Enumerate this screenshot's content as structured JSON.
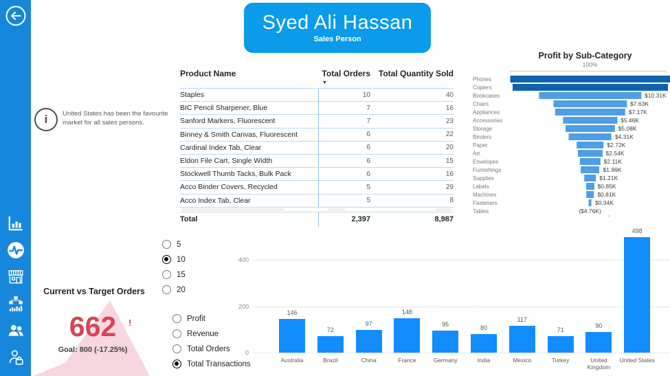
{
  "header": {
    "title": "Syed Ali Hassan",
    "subtitle": "Sales Person"
  },
  "sidebar": {
    "back_icon": "back-arrow-icon",
    "icons": [
      "bar-chart-icon",
      "activity-icon",
      "store-icon",
      "hierarchy-chart-icon",
      "people-icon",
      "sales-agent-icon"
    ]
  },
  "info_note": {
    "icon": "info-icon",
    "text": "United States has been the favourite market for all sales persons."
  },
  "table": {
    "columns": [
      "Product Name",
      "Total Orders",
      "Total Quantity Sold"
    ],
    "sort_icon": "sort-descending-icon",
    "rows": [
      [
        "Staples",
        "10",
        "40"
      ],
      [
        "BIC Pencil Sharpener, Blue",
        "7",
        "16"
      ],
      [
        "Sanford Markers, Fluorescent",
        "7",
        "23"
      ],
      [
        "Binney & Smith Canvas, Fluorescent",
        "6",
        "22"
      ],
      [
        "Cardinal Index Tab, Clear",
        "6",
        "20"
      ],
      [
        "Eldon File Cart, Single Width",
        "6",
        "15"
      ],
      [
        "Stockwell Thumb Tacks, Bulk Pack",
        "6",
        "16"
      ],
      [
        "Acco Binder Covers, Recycled",
        "5",
        "29"
      ],
      [
        "Acco Index Tab, Clear",
        "5",
        "8"
      ]
    ],
    "total": [
      "Total",
      "2,397",
      "8,987"
    ]
  },
  "selectors": {
    "top_n": {
      "options": [
        "5",
        "10",
        "15",
        "20"
      ],
      "selected": "10"
    },
    "measure": {
      "options": [
        "Profit",
        "Revenue",
        "Total Orders",
        "Total Transactions"
      ],
      "selected": "Total Transactions"
    }
  },
  "kpi": {
    "title": "Current vs Target Orders",
    "value": "662",
    "alert": "!",
    "goal": "Goal: 800 (-17.25%)",
    "value_color": "#D64554",
    "shape_color": "#F5D3DB"
  },
  "chart_data": [
    {
      "type": "funnel",
      "title": "Profit by Sub-Category",
      "axis_label": "100%",
      "categories": [
        "Phones",
        "Copiers",
        "Bookcases",
        "Chairs",
        "Appliances",
        "Accessories",
        "Storage",
        "Binders",
        "Paper",
        "Art",
        "Envelopes",
        "Furnishings",
        "Supplies",
        "Labels",
        "Machines",
        "Fasteners",
        "Tables"
      ],
      "value_labels": [
        "",
        "",
        "$10.31K",
        "$7.63K",
        "$7.17K",
        "$5.46K",
        "$5.08K",
        "$4.31K",
        "$2.72K",
        "$2.54K",
        "$2.11K",
        "$1.96K",
        "$1.21K",
        "$0.85K",
        "$0.81K",
        "$0.34K",
        "($4.76K)"
      ],
      "percent_width": [
        100,
        97,
        64,
        46,
        44,
        34,
        31,
        27,
        17,
        15.5,
        13,
        12,
        7.5,
        5.2,
        5,
        2.1,
        0
      ],
      "dark_rows": [
        0,
        1
      ],
      "bar_color": "#4E9EE8",
      "dark_bar_color": "#0F62B0"
    },
    {
      "type": "bar",
      "categories": [
        "Australia",
        "Brazil",
        "China",
        "France",
        "Germany",
        "India",
        "Mexico",
        "Turkey",
        "United Kingdom",
        "United States"
      ],
      "values": [
        146,
        72,
        97,
        148,
        95,
        80,
        117,
        71,
        90,
        498
      ],
      "yticks": [
        0,
        200,
        400
      ],
      "ylim": [
        0,
        560
      ],
      "grid": "dotted",
      "bar_color": "#118DFF"
    }
  ]
}
